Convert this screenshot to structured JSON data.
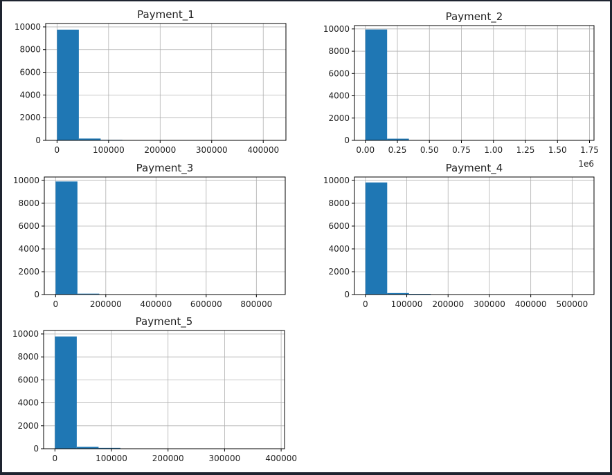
{
  "chart_data": [
    {
      "type": "bar",
      "title": "Payment_1",
      "xlabel": "",
      "ylabel": "",
      "grid": true,
      "xlim": [
        -22000,
        444000
      ],
      "ylim": [
        0,
        10300
      ],
      "x_ticks": [
        0,
        100000,
        200000,
        300000,
        400000
      ],
      "x_tick_labels": [
        "0",
        "100000",
        "200000",
        "300000",
        "400000"
      ],
      "y_ticks": [
        0,
        2000,
        4000,
        6000,
        8000,
        10000
      ],
      "y_tick_labels": [
        "0",
        "2000",
        "4000",
        "6000",
        "8000",
        "10000"
      ],
      "bin_edges": [
        0,
        42300,
        84600,
        126900,
        169200,
        211500,
        253800,
        296100,
        338400,
        380700,
        423000
      ],
      "values": [
        9760,
        160,
        45,
        14,
        7,
        4,
        3,
        2,
        2,
        1
      ]
    },
    {
      "type": "bar",
      "title": "Payment_2",
      "xlabel": "",
      "ylabel": "",
      "grid": true,
      "xlim": [
        -85000,
        1785000
      ],
      "ylim": [
        0,
        10300
      ],
      "x_ticks": [
        0,
        250000,
        500000,
        750000,
        1000000,
        1250000,
        1500000,
        1750000
      ],
      "x_tick_labels": [
        "0.00",
        "0.25",
        "0.50",
        "0.75",
        "1.00",
        "1.25",
        "1.50",
        "1.75"
      ],
      "x_offset_text": "1e6",
      "y_ticks": [
        0,
        2000,
        4000,
        6000,
        8000,
        10000
      ],
      "y_tick_labels": [
        "0",
        "2000",
        "4000",
        "6000",
        "8000",
        "10000"
      ],
      "bin_edges": [
        0,
        170000,
        340000,
        510000,
        680000,
        850000,
        1020000,
        1190000,
        1360000,
        1530000,
        1700000
      ],
      "values": [
        9950,
        150,
        8,
        3,
        2,
        1,
        1,
        1,
        0,
        1
      ]
    },
    {
      "type": "bar",
      "title": "Payment_3",
      "xlabel": "",
      "ylabel": "",
      "grid": true,
      "xlim": [
        -45000,
        915000
      ],
      "ylim": [
        0,
        10300
      ],
      "x_ticks": [
        0,
        200000,
        400000,
        600000,
        800000
      ],
      "x_tick_labels": [
        "0",
        "200000",
        "400000",
        "600000",
        "800000"
      ],
      "y_ticks": [
        0,
        2000,
        4000,
        6000,
        8000,
        10000
      ],
      "y_tick_labels": [
        "0",
        "2000",
        "4000",
        "6000",
        "8000",
        "10000"
      ],
      "bin_edges": [
        0,
        87000,
        174000,
        261000,
        348000,
        435000,
        522000,
        609000,
        696000,
        783000,
        870000
      ],
      "values": [
        9910,
        80,
        10,
        4,
        2,
        1,
        1,
        0,
        0,
        1
      ]
    },
    {
      "type": "bar",
      "title": "Payment_4",
      "xlabel": "",
      "ylabel": "",
      "grid": true,
      "xlim": [
        -26500,
        553000
      ],
      "ylim": [
        0,
        10300
      ],
      "x_ticks": [
        0,
        100000,
        200000,
        300000,
        400000,
        500000
      ],
      "x_tick_labels": [
        "0",
        "100000",
        "200000",
        "300000",
        "400000",
        "500000"
      ],
      "y_ticks": [
        0,
        2000,
        4000,
        6000,
        8000,
        10000
      ],
      "y_tick_labels": [
        "0",
        "2000",
        "4000",
        "6000",
        "8000",
        "10000"
      ],
      "bin_edges": [
        0,
        52700,
        105400,
        158100,
        210800,
        263500,
        316200,
        368900,
        421600,
        474300,
        527000
      ],
      "values": [
        9820,
        130,
        60,
        12,
        5,
        3,
        2,
        1,
        1,
        1
      ]
    },
    {
      "type": "bar",
      "title": "Payment_5",
      "xlabel": "",
      "ylabel": "",
      "grid": true,
      "xlim": [
        -20000,
        406000
      ],
      "ylim": [
        0,
        10300
      ],
      "x_ticks": [
        0,
        100000,
        200000,
        300000,
        400000
      ],
      "x_tick_labels": [
        "0",
        "100000",
        "200000",
        "300000",
        "400000"
      ],
      "y_ticks": [
        0,
        2000,
        4000,
        6000,
        8000,
        10000
      ],
      "y_tick_labels": [
        "0",
        "2000",
        "4000",
        "6000",
        "8000",
        "10000"
      ],
      "bin_edges": [
        0,
        38600,
        77200,
        115800,
        154400,
        193000,
        231600,
        270200,
        308800,
        347400,
        386000
      ],
      "values": [
        9780,
        170,
        70,
        12,
        5,
        3,
        2,
        1,
        1,
        1
      ]
    }
  ],
  "colors": {
    "bar": "#1f77b4",
    "grid": "#b0b0b0",
    "axis": "#000000",
    "frame": "#1e2430"
  }
}
